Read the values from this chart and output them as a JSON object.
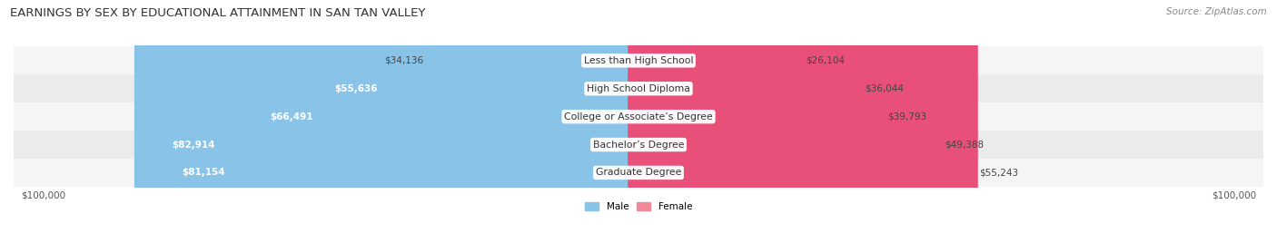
{
  "title": "EARNINGS BY SEX BY EDUCATIONAL ATTAINMENT IN SAN TAN VALLEY",
  "source": "Source: ZipAtlas.com",
  "categories": [
    "Less than High School",
    "High School Diploma",
    "College or Associate’s Degree",
    "Bachelor’s Degree",
    "Graduate Degree"
  ],
  "male_values": [
    34136,
    55636,
    66491,
    82914,
    81154
  ],
  "female_values": [
    26104,
    36044,
    39793,
    49388,
    55243
  ],
  "male_labels": [
    "$34,136",
    "$55,636",
    "$66,491",
    "$82,914",
    "$81,154"
  ],
  "female_labels": [
    "$26,104",
    "$36,044",
    "$39,793",
    "$49,388",
    "$55,243"
  ],
  "male_color": "#89C4E8",
  "female_color": "#F08898",
  "female_color_last": "#E8507A",
  "row_bg_light": "#F5F5F5",
  "row_bg_dark": "#EBEBEB",
  "max_value": 100000,
  "x_tick_labels": [
    "$100,000",
    "$100,000"
  ],
  "title_fontsize": 9.5,
  "source_fontsize": 7.5,
  "label_fontsize": 7.5,
  "category_fontsize": 7.8,
  "background_color": "#FFFFFF"
}
